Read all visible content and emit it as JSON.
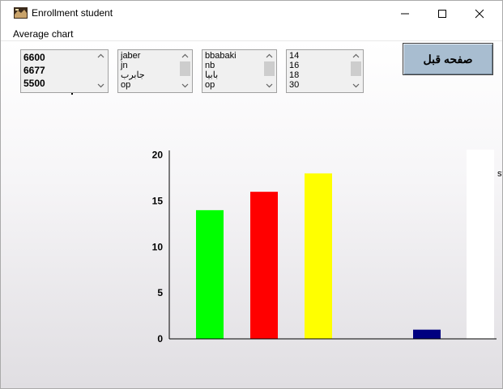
{
  "window": {
    "title": "Enrollment student"
  },
  "menu": {
    "items": [
      "Average chart"
    ]
  },
  "lists": {
    "scores": [
      "6600",
      "6677",
      "5500"
    ],
    "first_names": [
      "jaber",
      "jn",
      "جابرب",
      "op"
    ],
    "last_names": [
      "bbabaki",
      "nb",
      "بابيا",
      "op"
    ],
    "ages": [
      "14",
      "16",
      "18",
      "30"
    ]
  },
  "buttons": {
    "previous_page": "صفحه قبل"
  },
  "edge_text": "st",
  "colors": {
    "bar_green": "#00ff00",
    "bar_red": "#ff0000",
    "bar_yellow": "#ffff00",
    "bar_navy": "#000080"
  },
  "chart_data": {
    "type": "bar",
    "categories": [
      "",
      "",
      "",
      "",
      ""
    ],
    "values": [
      14,
      16,
      18,
      0,
      1
    ],
    "colors": [
      "#00ff00",
      "#ff0000",
      "#ffff00",
      "#000080",
      "#000080"
    ],
    "y_ticks": [
      "0",
      "5",
      "10",
      "15",
      "20"
    ],
    "ylim": [
      0,
      20.5
    ],
    "title": "",
    "xlabel": "",
    "ylabel": "",
    "grid": false,
    "legend": "none"
  }
}
